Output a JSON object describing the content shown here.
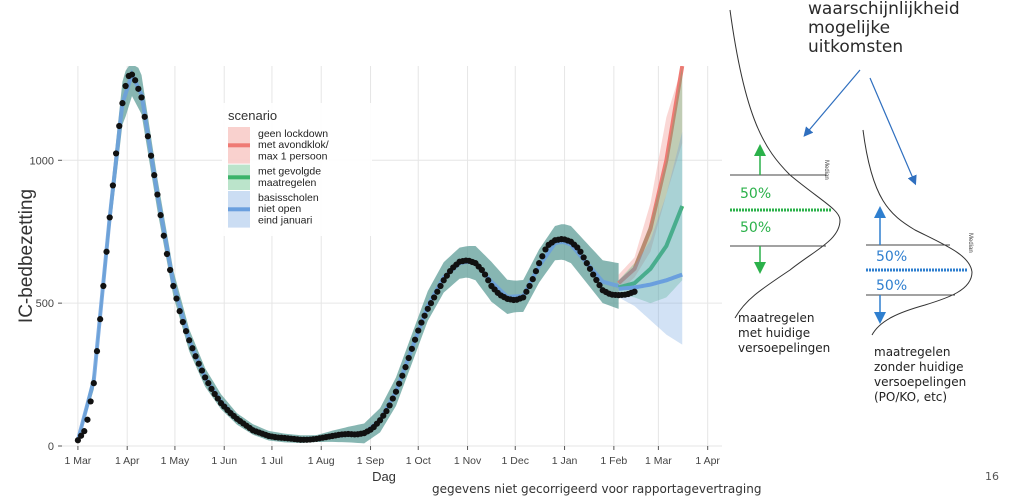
{
  "chart_data": {
    "type": "line",
    "ylabel": "IC-bedbezetting",
    "xlabel": "Dag",
    "ylim": [
      0,
      1330
    ],
    "yticks": [
      0,
      500,
      1000
    ],
    "xticks": [
      "1 Mar",
      "1 Apr",
      "1 May",
      "1 Jun",
      "1 Jul",
      "1 Aug",
      "1 Sep",
      "1 Oct",
      "1 Nov",
      "1 Dec",
      "1 Jan",
      "1 Feb",
      "1 Mar",
      "1 Apr"
    ],
    "xtick_days": [
      0,
      31,
      61,
      92,
      122,
      153,
      184,
      214,
      245,
      275,
      306,
      337,
      365,
      396
    ],
    "xlim_days": [
      -10,
      405
    ],
    "grid": true,
    "legend": {
      "title": "scenario",
      "position": "top-center",
      "entries": [
        {
          "label_lines": [
            "geen lockdown",
            "met avondklok/",
            "max 1 persoon"
          ],
          "color": "#ef7a74"
        },
        {
          "label_lines": [
            "met gevolgde",
            "maatregelen"
          ],
          "color": "#3cb36a"
        },
        {
          "label_lines": [
            "basisscholen",
            "niet open",
            "eind januari"
          ],
          "color": "#6a9fde"
        }
      ]
    },
    "observed": {
      "name": "",
      "points": [
        [
          0,
          20
        ],
        [
          5,
          60
        ],
        [
          10,
          220
        ],
        [
          15,
          500
        ],
        [
          20,
          800
        ],
        [
          25,
          1080
        ],
        [
          28,
          1200
        ],
        [
          30,
          1260
        ],
        [
          32,
          1295
        ],
        [
          34,
          1300
        ],
        [
          36,
          1280
        ],
        [
          40,
          1220
        ],
        [
          45,
          1050
        ],
        [
          50,
          880
        ],
        [
          55,
          700
        ],
        [
          60,
          560
        ],
        [
          65,
          450
        ],
        [
          70,
          370
        ],
        [
          75,
          300
        ],
        [
          80,
          240
        ],
        [
          85,
          190
        ],
        [
          90,
          150
        ],
        [
          95,
          120
        ],
        [
          100,
          95
        ],
        [
          105,
          75
        ],
        [
          110,
          55
        ],
        [
          115,
          45
        ],
        [
          120,
          35
        ],
        [
          125,
          30
        ],
        [
          130,
          28
        ],
        [
          135,
          25
        ],
        [
          140,
          22
        ],
        [
          145,
          22
        ],
        [
          150,
          25
        ],
        [
          155,
          30
        ],
        [
          160,
          35
        ],
        [
          165,
          40
        ],
        [
          170,
          42
        ],
        [
          175,
          40
        ],
        [
          180,
          45
        ],
        [
          185,
          60
        ],
        [
          190,
          90
        ],
        [
          195,
          130
        ],
        [
          200,
          190
        ],
        [
          205,
          260
        ],
        [
          210,
          340
        ],
        [
          215,
          420
        ],
        [
          220,
          480
        ],
        [
          225,
          530
        ],
        [
          230,
          580
        ],
        [
          235,
          620
        ],
        [
          240,
          645
        ],
        [
          245,
          650
        ],
        [
          250,
          640
        ],
        [
          255,
          610
        ],
        [
          260,
          560
        ],
        [
          265,
          530
        ],
        [
          270,
          515
        ],
        [
          275,
          510
        ],
        [
          280,
          520
        ],
        [
          285,
          570
        ],
        [
          290,
          640
        ],
        [
          295,
          700
        ],
        [
          300,
          720
        ],
        [
          305,
          725
        ],
        [
          310,
          715
        ],
        [
          315,
          690
        ],
        [
          320,
          640
        ],
        [
          325,
          590
        ],
        [
          330,
          545
        ],
        [
          335,
          530
        ],
        [
          340,
          528
        ],
        [
          345,
          530
        ],
        [
          350,
          540
        ]
      ]
    },
    "mean_fit": [
      [
        0,
        20
      ],
      [
        10,
        230
      ],
      [
        20,
        800
      ],
      [
        28,
        1200
      ],
      [
        34,
        1300
      ],
      [
        40,
        1230
      ],
      [
        50,
        880
      ],
      [
        60,
        570
      ],
      [
        70,
        370
      ],
      [
        80,
        240
      ],
      [
        90,
        155
      ],
      [
        100,
        95
      ],
      [
        110,
        58
      ],
      [
        120,
        36
      ],
      [
        130,
        28
      ],
      [
        140,
        24
      ],
      [
        150,
        26
      ],
      [
        160,
        34
      ],
      [
        170,
        40
      ],
      [
        180,
        44
      ],
      [
        190,
        90
      ],
      [
        200,
        190
      ],
      [
        210,
        340
      ],
      [
        220,
        490
      ],
      [
        230,
        590
      ],
      [
        240,
        640
      ],
      [
        245,
        645
      ],
      [
        250,
        640
      ],
      [
        260,
        575
      ],
      [
        270,
        522
      ],
      [
        280,
        525
      ],
      [
        290,
        630
      ],
      [
        300,
        710
      ],
      [
        305,
        715
      ],
      [
        310,
        705
      ],
      [
        320,
        640
      ],
      [
        330,
        575
      ],
      [
        340,
        560
      ]
    ],
    "band_halfwidth": [
      [
        0,
        8
      ],
      [
        30,
        80
      ],
      [
        60,
        45
      ],
      [
        100,
        20
      ],
      [
        150,
        12
      ],
      [
        200,
        50
      ],
      [
        245,
        55
      ],
      [
        260,
        70
      ],
      [
        275,
        55
      ],
      [
        300,
        60
      ],
      [
        340,
        80
      ]
    ],
    "projections": [
      {
        "color": "#ef7a74",
        "mean": [
          [
            340,
            570
          ],
          [
            350,
            620
          ],
          [
            360,
            760
          ],
          [
            370,
            1000
          ],
          [
            380,
            1330
          ]
        ],
        "lower": [
          [
            340,
            540
          ],
          [
            350,
            590
          ],
          [
            360,
            680
          ],
          [
            370,
            880
          ],
          [
            380,
            1060
          ]
        ],
        "upper": [
          [
            340,
            600
          ],
          [
            350,
            660
          ],
          [
            360,
            850
          ],
          [
            370,
            1150
          ],
          [
            380,
            1330
          ]
        ]
      },
      {
        "color": "#3cb36a",
        "mean": [
          [
            340,
            555
          ],
          [
            350,
            570
          ],
          [
            360,
            620
          ],
          [
            370,
            700
          ],
          [
            380,
            840
          ]
        ],
        "lower": [
          [
            340,
            530
          ],
          [
            350,
            520
          ],
          [
            360,
            500
          ],
          [
            370,
            520
          ],
          [
            380,
            580
          ]
        ],
        "upper": [
          [
            340,
            580
          ],
          [
            350,
            640
          ],
          [
            360,
            780
          ],
          [
            370,
            1000
          ],
          [
            380,
            1330
          ]
        ]
      },
      {
        "color": "#6a9fde",
        "mean": [
          [
            340,
            550
          ],
          [
            350,
            555
          ],
          [
            360,
            565
          ],
          [
            370,
            580
          ],
          [
            380,
            600
          ]
        ],
        "lower": [
          [
            340,
            520
          ],
          [
            350,
            490
          ],
          [
            360,
            440
          ],
          [
            370,
            390
          ],
          [
            380,
            355
          ]
        ],
        "upper": [
          [
            340,
            580
          ],
          [
            350,
            630
          ],
          [
            360,
            720
          ],
          [
            370,
            880
          ],
          [
            380,
            1100
          ]
        ]
      }
    ]
  },
  "annotation": {
    "title_lines": [
      "waarschijnlijkheid",
      "mogelijke",
      "uitkomsten"
    ],
    "curve1_median_label": "Median",
    "curve2_median_label": "Median",
    "percent_upper_1": "50%",
    "percent_lower_1": "50%",
    "percent_upper_2": "50%",
    "percent_lower_2": "50%",
    "caption1_lines": [
      "maatregelen",
      "met huidige",
      "versoepelingen"
    ],
    "caption2_lines": [
      "maatregelen",
      "zonder huidige",
      "versoepelingen",
      "(PO/KO, etc)"
    ],
    "green": "#2bb14a",
    "blue": "#2f7fcf"
  },
  "footnote": "gegevens niet gecorrigeerd voor rapportagevertraging",
  "page_number": "16"
}
